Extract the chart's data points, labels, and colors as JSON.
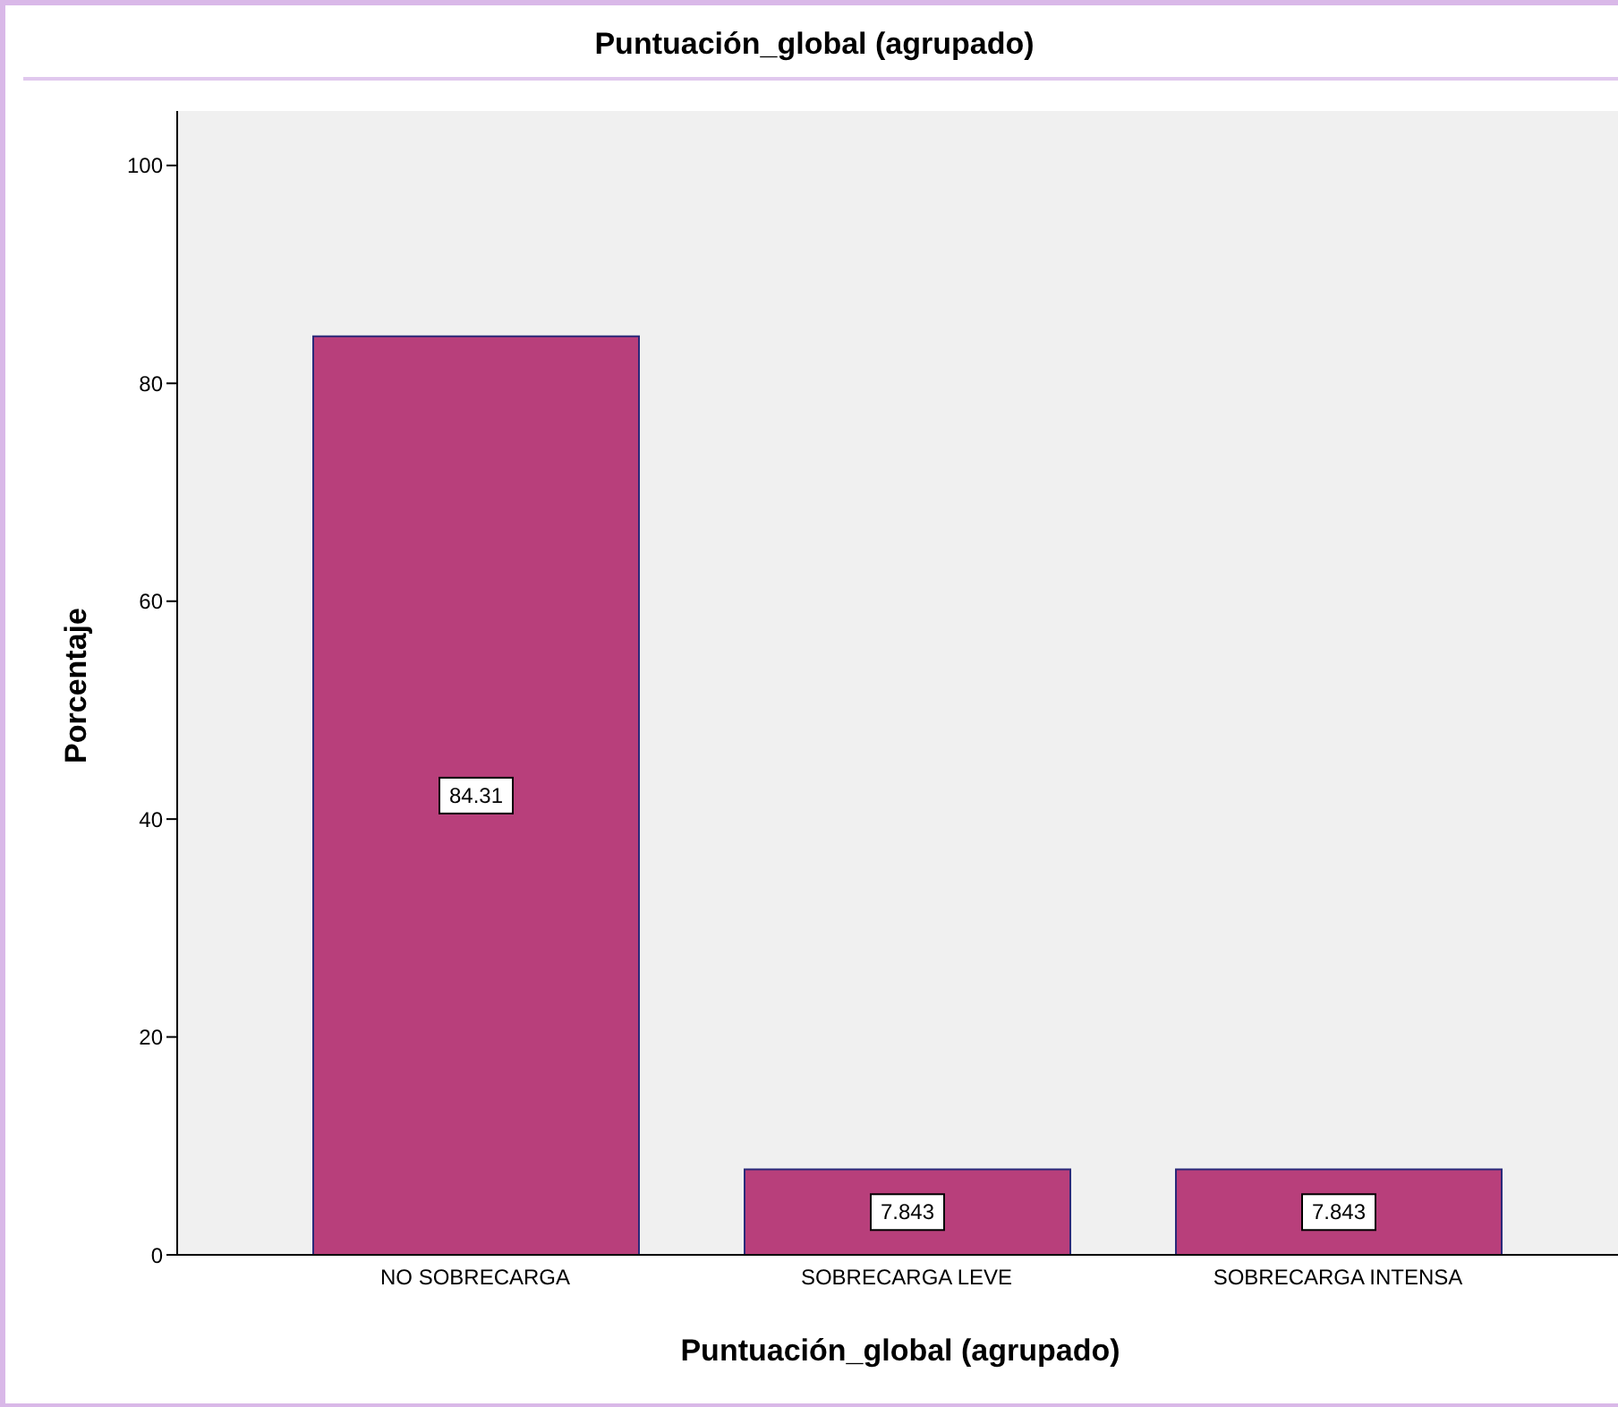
{
  "chart_data": {
    "type": "bar",
    "title": "Puntuación_global (agrupado)",
    "xlabel": "Puntuación_global (agrupado)",
    "ylabel": "Porcentaje",
    "categories": [
      "NO SOBRECARGA",
      "SOBRECARGA LEVE",
      "SOBRECARGA INTENSA"
    ],
    "values": [
      84.31,
      7.843,
      7.843
    ],
    "color": "#b83f7b",
    "ylim": [
      0,
      105
    ],
    "yticks": [
      0,
      20,
      40,
      60,
      80,
      100
    ],
    "data_labels": true,
    "grid": false
  }
}
